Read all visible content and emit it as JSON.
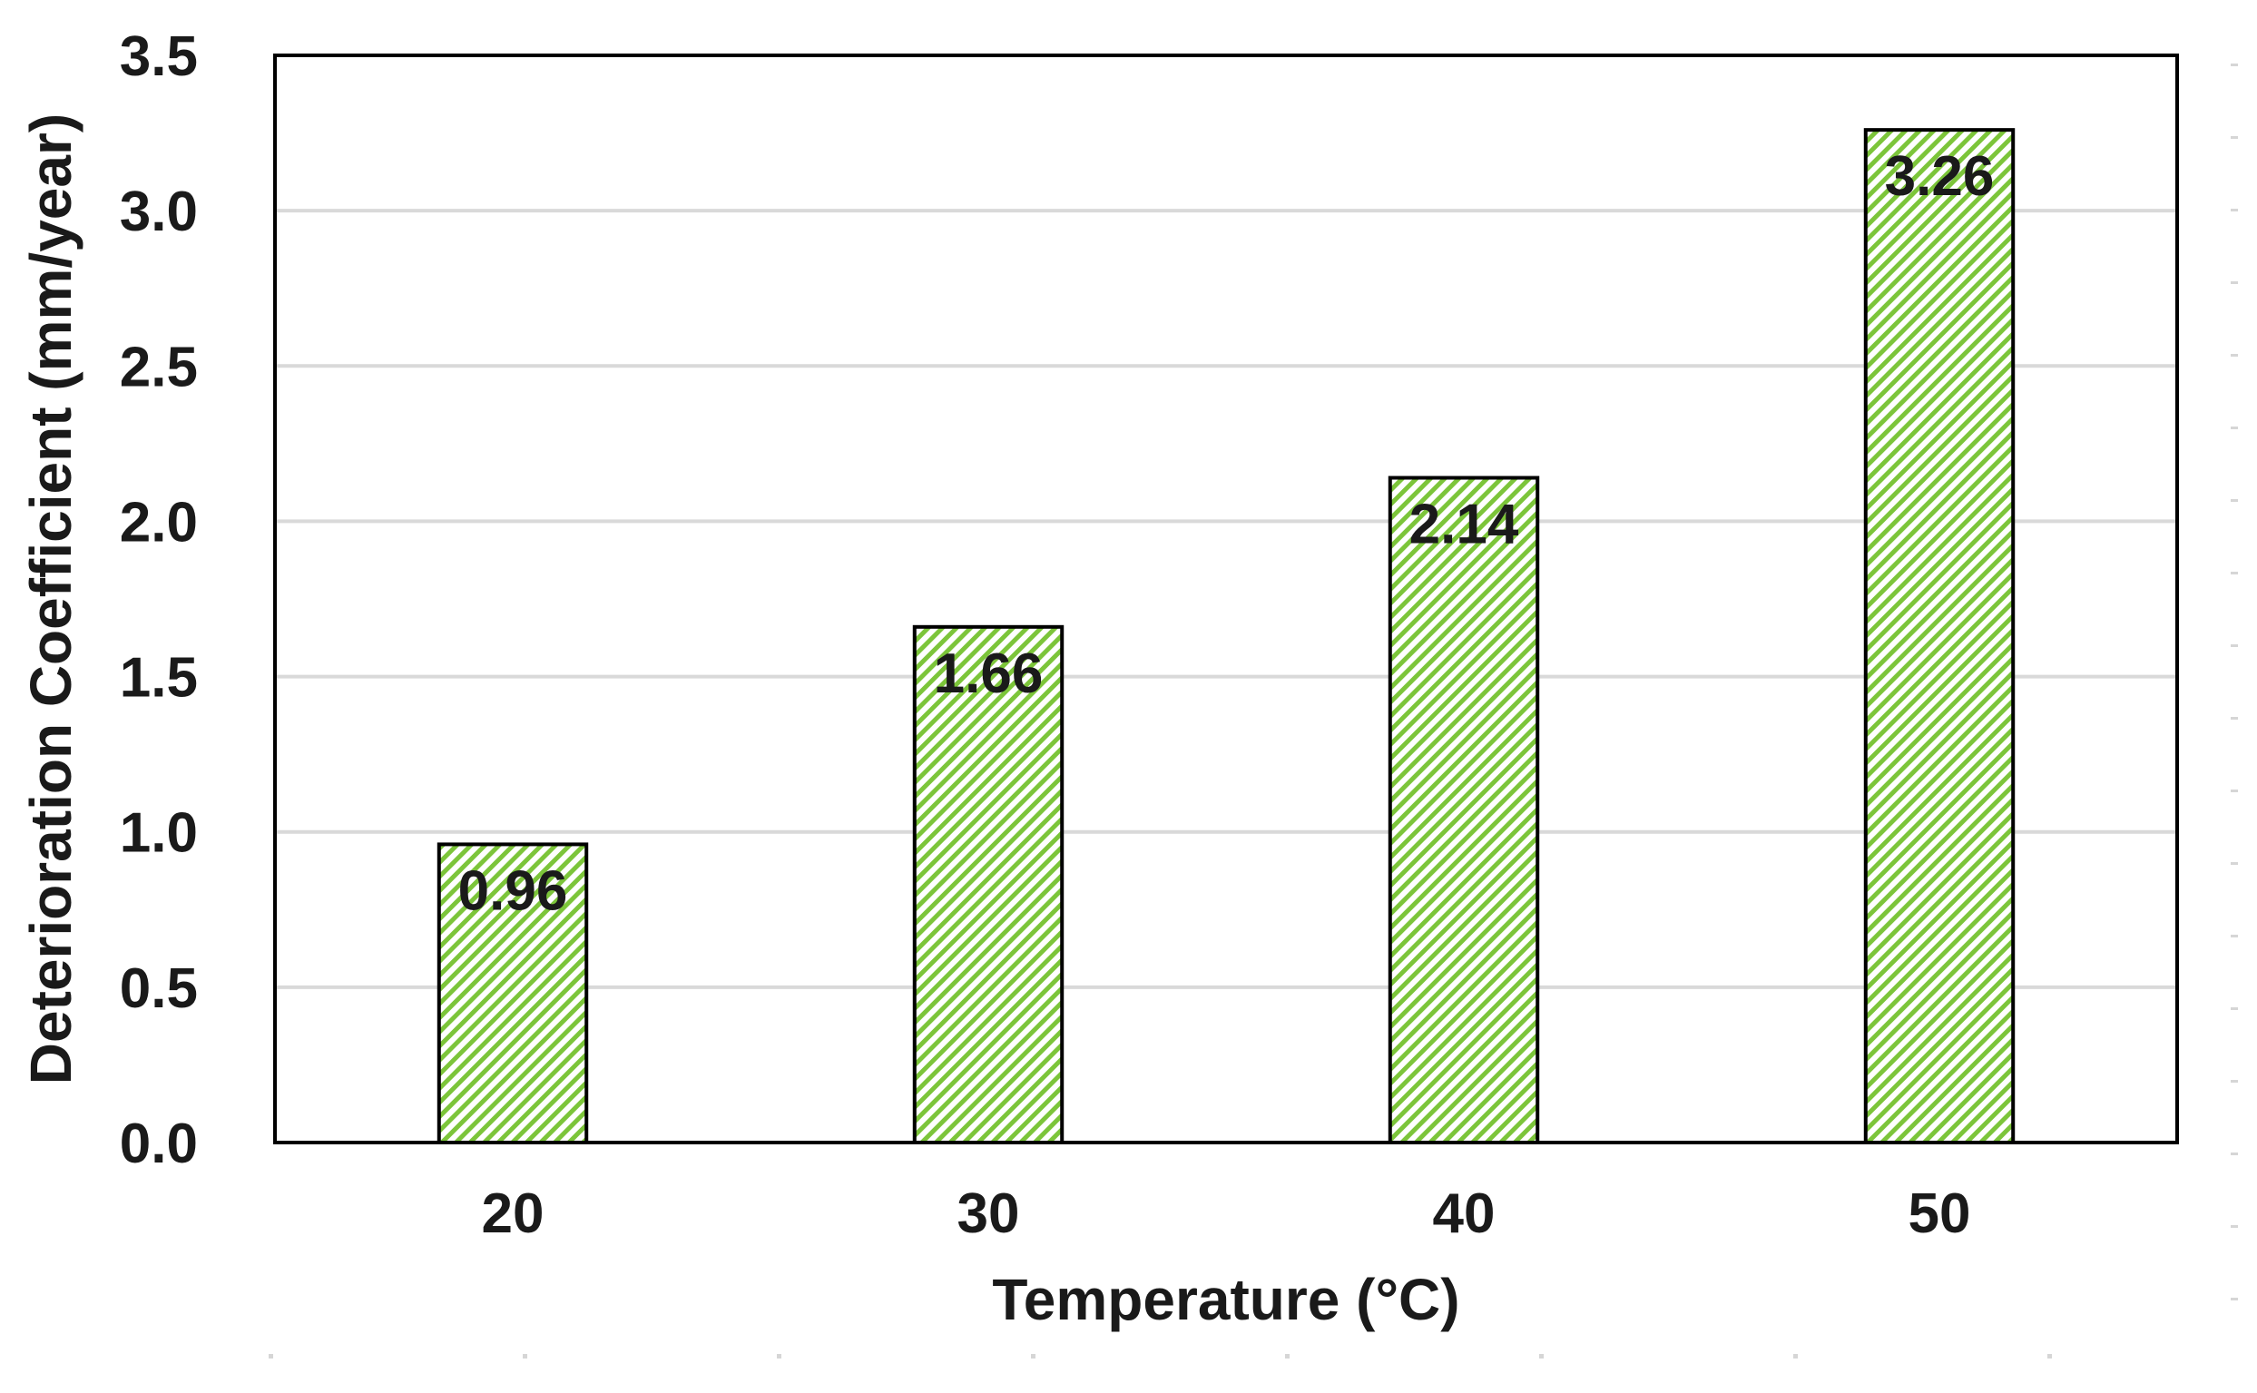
{
  "chart_data": {
    "type": "bar",
    "categories": [
      "20",
      "30",
      "40",
      "50"
    ],
    "values": [
      0.96,
      1.66,
      2.14,
      3.26
    ],
    "data_labels": [
      "0.96",
      "1.66",
      "2.14",
      "3.26"
    ],
    "title": "",
    "xlabel": "Temperature (°C)",
    "ylabel": "Deterioration Coefficient (mm/year)",
    "ylim": [
      0,
      3.5
    ],
    "yticks": [
      "0.0",
      "0.5",
      "1.0",
      "1.5",
      "2.0",
      "2.5",
      "3.0",
      "3.5"
    ],
    "grid": "horizontal",
    "legend": "none",
    "bar_fill": "hatched-diagonal",
    "colors": {
      "hatch": "#7cc53a",
      "bar_outline": "#000000",
      "grid": "#d9d9d9",
      "text": "#1a1a1a"
    }
  }
}
